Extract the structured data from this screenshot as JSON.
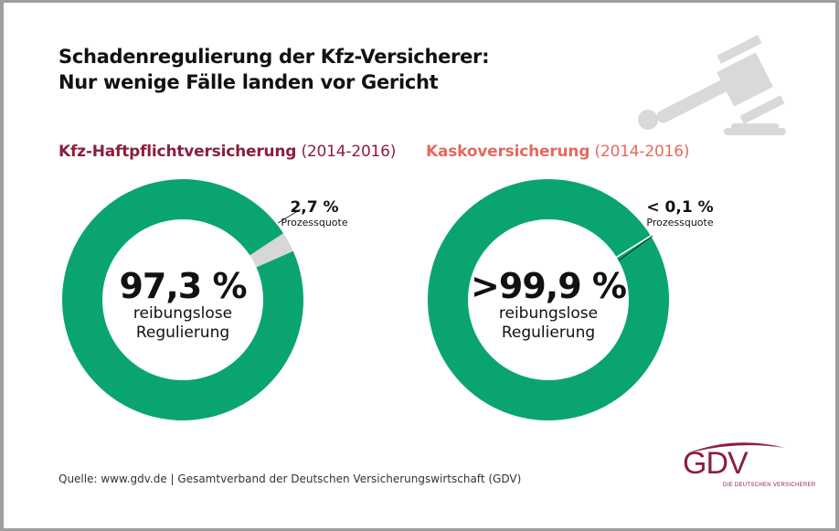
{
  "header": {
    "title_line1": "Schadenregulierung der Kfz-Versicherer:",
    "title_line2": "Nur wenige Fälle landen vor Gericht",
    "icon": "gavel-icon"
  },
  "colors": {
    "green": "#0aa56e",
    "gray": "#d7d7d7",
    "dark_red": "#8b1f3d",
    "salmon": "#e36a5f"
  },
  "chart_data": [
    {
      "type": "pie",
      "variant": "donut",
      "title": "Kfz-Haftpflichtversicherung",
      "period": "(2014-2016)",
      "slices": [
        {
          "label": "reibungslose Regulierung",
          "value": 97.3,
          "color": "#0aa56e"
        },
        {
          "label": "Prozessquote",
          "value": 2.7,
          "color": "#d7d7d7"
        }
      ],
      "center_value": "97,3 %",
      "center_label_line1": "reibungslose",
      "center_label_line2": "Regulierung",
      "callout_value": "2,7 %",
      "callout_label": "Prozessquote"
    },
    {
      "type": "pie",
      "variant": "donut",
      "title": "Kaskoversicherung",
      "period": "(2014-2016)",
      "slices": [
        {
          "label": "reibungslose Regulierung",
          "value": 99.9,
          "color": "#0aa56e"
        },
        {
          "label": "Prozessquote",
          "value": 0.1,
          "color": "#ffffff"
        }
      ],
      "center_value": ">99,9 %",
      "center_label_line1": "reibungslose",
      "center_label_line2": "Regulierung",
      "callout_value": "< 0,1 %",
      "callout_label": "Prozessquote"
    }
  ],
  "footer": {
    "source": "Quelle: www.gdv.de | Gesamtverband der Deutschen Versicherungswirtschaft (GDV)",
    "logo_text": "GDV",
    "logo_tagline": "DIE DEUTSCHEN VERSICHERER"
  }
}
